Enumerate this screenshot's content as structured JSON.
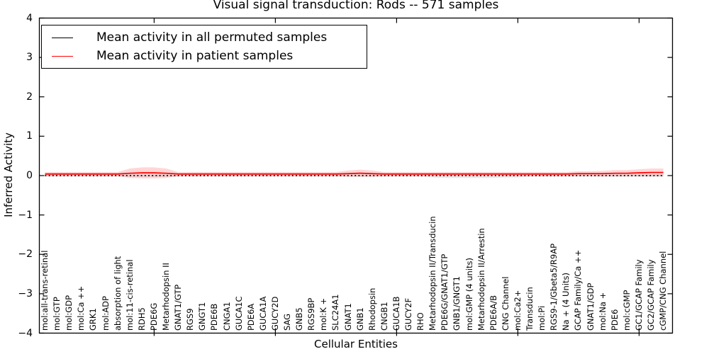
{
  "chart_data": {
    "type": "line",
    "title": "Visual signal transduction: Rods -- 571 samples",
    "xlabel": "Cellular Entities",
    "ylabel": "Inferred Activity",
    "ylim": [
      -4,
      4
    ],
    "yticks": [
      4,
      3,
      2,
      1,
      0,
      -1,
      -2,
      -3,
      -4
    ],
    "xtick_indices": [
      9,
      19,
      29,
      39,
      49
    ],
    "grid": false,
    "legend_position": "upper left",
    "categories": [
      "mol:all-trans-retinal",
      "mol:GTP",
      "mol:GDP",
      "mol:Ca ++",
      "GRK1",
      "mol:ADP",
      "absorption of light",
      "mol:11-cis-retinal",
      "RDH5",
      "PDE6G",
      "Metarhodopsin II",
      "GNAT1/GTP",
      "RGS9",
      "GNGT1",
      "PDE6B",
      "CNGA1",
      "GUCA1C",
      "PDE6A",
      "GUCA1A",
      "GUCY2D",
      "SAG",
      "GNB5",
      "RGS9BP",
      "mol:K +",
      "SLC24A1",
      "GNAT1",
      "GNB1",
      "Rhodopsin",
      "CNGB1",
      "GUCA1B",
      "GUCY2F",
      "RHO",
      "Metarhodopsin II/Transducin",
      "PDE6G/GNAT1/GTP",
      "GNB1/GNGT1",
      "mol:GMP (4 units)",
      "Metarhodopsin II/Arrestin",
      "PDE6A/B",
      "CNG Channel",
      "mol:Ca2+",
      "Transducin",
      "mol:Pi",
      "RGS9-1/Gbeta5/R9AP",
      "Na + (4 Units)",
      "GCAP Family/Ca ++",
      "GNAT1/GDP",
      "mol:Na +",
      "PDE6",
      "mol:cGMP",
      "GC1/GCAP Family",
      "GC2/GCAP Family",
      "cGMP/CNG Channel"
    ],
    "series": [
      {
        "name": "Mean activity in all permuted samples",
        "color": "#000000",
        "style": "dotted",
        "values": [
          0,
          0,
          0,
          0,
          0,
          0,
          0,
          0,
          0,
          0,
          0,
          0,
          0,
          0,
          0,
          0,
          0,
          0,
          0,
          0,
          0,
          0,
          0,
          0,
          0,
          0,
          0,
          0,
          0,
          0,
          0,
          0,
          0,
          0,
          0,
          0,
          0,
          0,
          0,
          0,
          0,
          0,
          0,
          0,
          0,
          0,
          0,
          0,
          0,
          0,
          0,
          0
        ],
        "spread": [
          0.03,
          0.03,
          0.03,
          0.03,
          0.03,
          0.03,
          0.03,
          0.03,
          0.03,
          0.03,
          0.03,
          0.03,
          0.03,
          0.03,
          0.03,
          0.03,
          0.03,
          0.03,
          0.03,
          0.03,
          0.03,
          0.03,
          0.03,
          0.03,
          0.03,
          0.03,
          0.03,
          0.03,
          0.03,
          0.03,
          0.03,
          0.03,
          0.05,
          0.06,
          0.06,
          0.06,
          0.06,
          0.06,
          0.05,
          0.05,
          0.03,
          0.03,
          0.03,
          0.03,
          0.03,
          0.03,
          0.03,
          0.03,
          0.03,
          0.03,
          0.03,
          0.03
        ]
      },
      {
        "name": "Mean activity in patient samples",
        "color": "#ff0000",
        "style": "solid",
        "values": [
          0.04,
          0.04,
          0.04,
          0.04,
          0.04,
          0.04,
          0.04,
          0.06,
          0.07,
          0.07,
          0.06,
          0.04,
          0.04,
          0.04,
          0.04,
          0.04,
          0.04,
          0.04,
          0.04,
          0.04,
          0.04,
          0.04,
          0.04,
          0.04,
          0.04,
          0.05,
          0.06,
          0.05,
          0.04,
          0.04,
          0.04,
          0.04,
          0.04,
          0.04,
          0.04,
          0.04,
          0.04,
          0.04,
          0.04,
          0.04,
          0.04,
          0.04,
          0.04,
          0.04,
          0.05,
          0.05,
          0.05,
          0.06,
          0.06,
          0.07,
          0.08,
          0.08
        ],
        "spread": [
          0.05,
          0.05,
          0.05,
          0.05,
          0.05,
          0.05,
          0.05,
          0.12,
          0.14,
          0.14,
          0.12,
          0.05,
          0.05,
          0.05,
          0.05,
          0.05,
          0.05,
          0.05,
          0.05,
          0.05,
          0.05,
          0.05,
          0.05,
          0.05,
          0.05,
          0.08,
          0.09,
          0.08,
          0.05,
          0.05,
          0.05,
          0.05,
          0.05,
          0.05,
          0.05,
          0.05,
          0.05,
          0.05,
          0.05,
          0.05,
          0.05,
          0.05,
          0.05,
          0.05,
          0.06,
          0.06,
          0.07,
          0.08,
          0.08,
          0.09,
          0.1,
          0.1
        ]
      }
    ]
  }
}
